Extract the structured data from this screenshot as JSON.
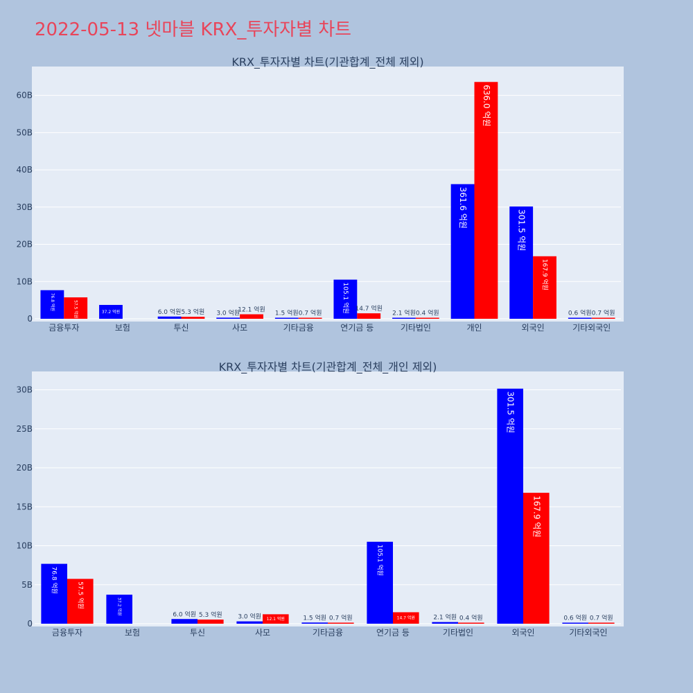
{
  "title": "2022-05-13 넷마블 KRX_투자자별 차트",
  "colors": {
    "buy": "#0000ff",
    "sell": "#ff0000",
    "plot_bg": "#e5ecf6",
    "page_bg": "#b0c4de",
    "title": "#e8455a"
  },
  "chart_data": [
    {
      "type": "bar",
      "title": "KRX_투자자별 차트(기관합계_전체 제외)",
      "categories": [
        "금융투자",
        "보험",
        "투신",
        "사모",
        "기타금융",
        "연기금 등",
        "기타법인",
        "개인",
        "외국인",
        "기타외국인"
      ],
      "series": [
        {
          "values": [
            7680000000,
            3720000000,
            600000000,
            300000000,
            150000000,
            10510000000,
            210000000,
            36160000000,
            30150000000,
            60000000
          ],
          "labels": [
            "76.8 억원",
            "37.2 억원",
            "6.0 억원",
            "3.0 억원",
            "1.5 억원",
            "105.1 억원",
            "2.1 억원",
            "361.6 억원",
            "301.5 억원",
            "0.6 억원"
          ]
        },
        {
          "values": [
            5750000000,
            0,
            530000000,
            1210000000,
            70000000,
            1470000000,
            40000000,
            63600000000,
            16790000000,
            70000000
          ],
          "labels": [
            "57.5 억원",
            "",
            "5.3 억원",
            "12.1 억원",
            "0.7 억원",
            "14.7 억원",
            "0.4 억원",
            "636.0 억원",
            "167.9 억원",
            "0.7 억원"
          ]
        }
      ],
      "ylim": [
        0,
        67000000000
      ],
      "yticks": [
        0,
        10000000000,
        20000000000,
        30000000000,
        40000000000,
        50000000000,
        60000000000
      ],
      "ytick_labels": [
        "0",
        "10B",
        "20B",
        "30B",
        "40B",
        "50B",
        "60B"
      ],
      "grid": true,
      "legend": "none"
    },
    {
      "type": "bar",
      "title": "KRX_투자자별 차트(기관합계_전체_개인 제외)",
      "categories": [
        "금융투자",
        "보험",
        "투신",
        "사모",
        "기타금융",
        "연기금 등",
        "기타법인",
        "외국인",
        "기타외국인"
      ],
      "series": [
        {
          "values": [
            7680000000,
            3720000000,
            600000000,
            300000000,
            150000000,
            10510000000,
            210000000,
            30150000000,
            60000000
          ],
          "labels": [
            "76.8 억원",
            "37.2 억원",
            "6.0 억원",
            "3.0 억원",
            "1.5 억원",
            "105.1 억원",
            "2.1 억원",
            "301.5 억원",
            "0.6 억원"
          ]
        },
        {
          "values": [
            5750000000,
            0,
            530000000,
            1210000000,
            70000000,
            1470000000,
            40000000,
            16790000000,
            70000000
          ],
          "labels": [
            "57.5 억원",
            "",
            "5.3 억원",
            "12.1 억원",
            "0.7 억원",
            "14.7 억원",
            "0.4 억원",
            "167.9 억원",
            "0.7 억원"
          ]
        }
      ],
      "ylim": [
        0,
        32000000000
      ],
      "yticks": [
        0,
        5000000000,
        10000000000,
        15000000000,
        20000000000,
        25000000000,
        30000000000
      ],
      "ytick_labels": [
        "0",
        "5B",
        "10B",
        "15B",
        "20B",
        "25B",
        "30B"
      ],
      "grid": true,
      "legend": "none"
    }
  ]
}
